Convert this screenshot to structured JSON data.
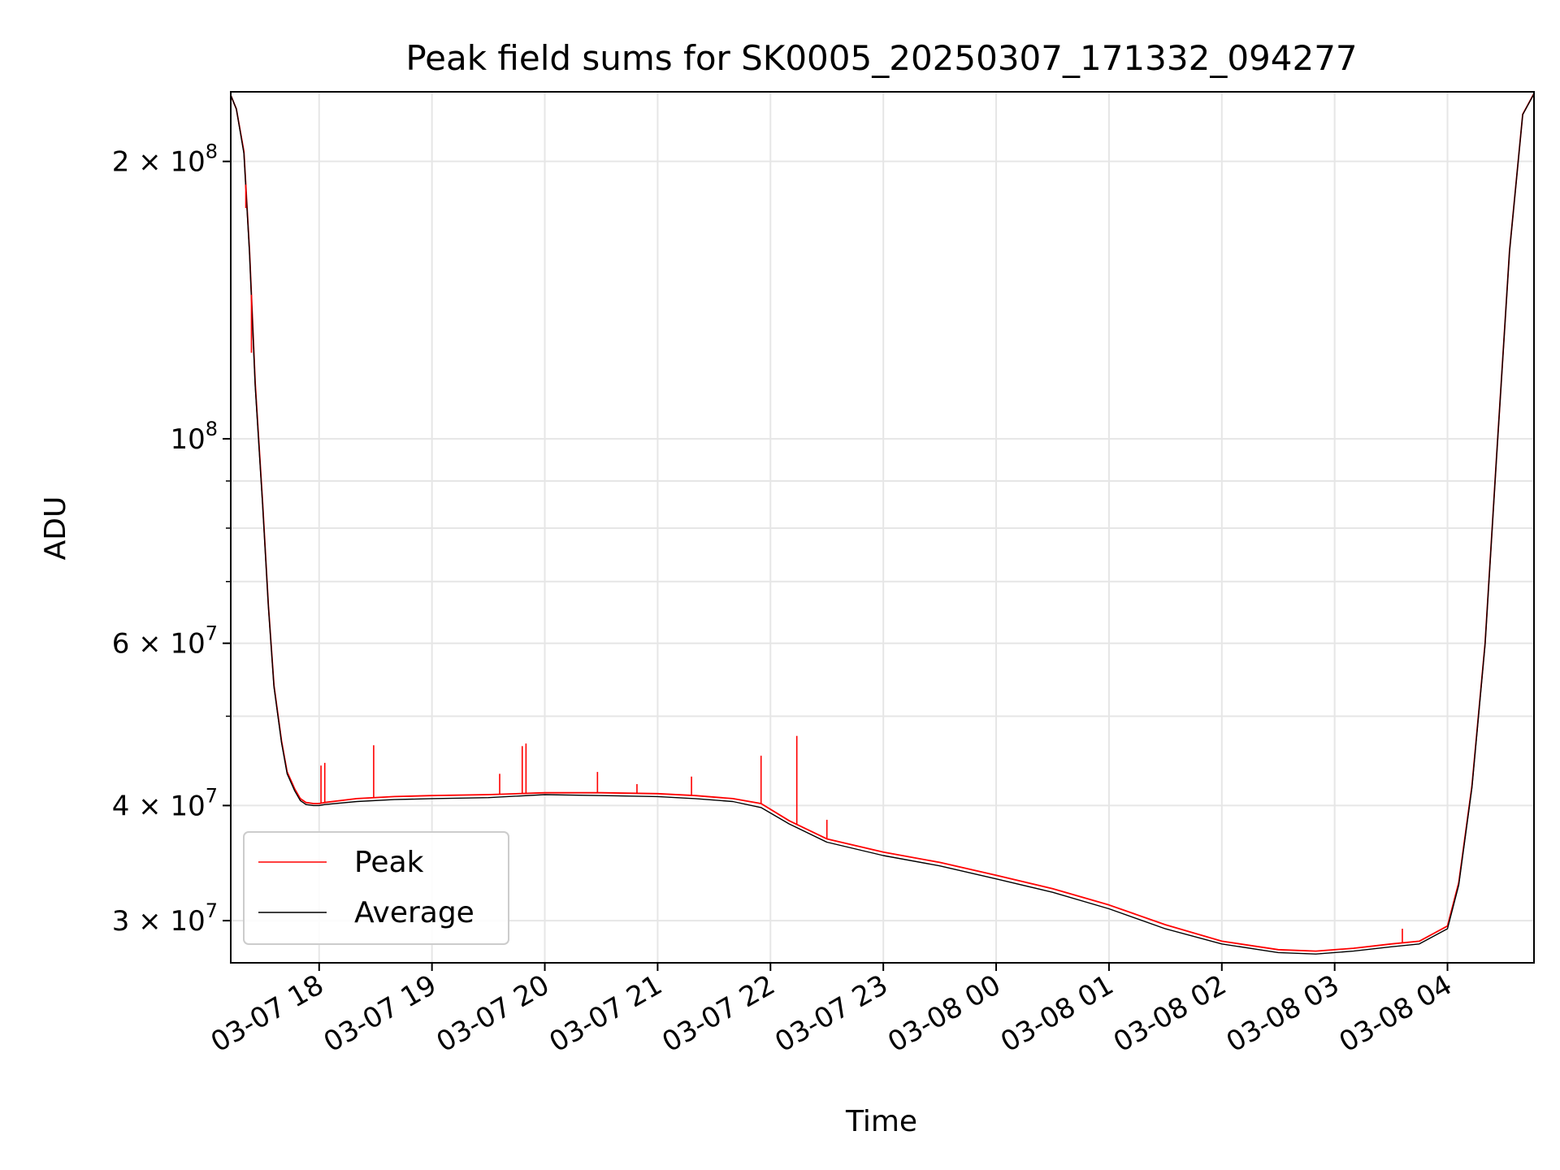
{
  "chart_data": {
    "type": "line",
    "title": "Peak field sums for SK0005_20250307_171332_094277",
    "xlabel": "Time",
    "ylabel": "ADU",
    "yscale": "log",
    "ylim": [
      27000000,
      238000000
    ],
    "xlim": [
      "2025-03-07 17:13",
      "2025-03-08 04:46"
    ],
    "grid": true,
    "legend": "lower-left",
    "x_ticks": [
      "03-07 18",
      "03-07 19",
      "03-07 20",
      "03-07 21",
      "03-07 22",
      "03-07 23",
      "03-08 00",
      "03-08 01",
      "03-08 02",
      "03-08 03",
      "03-08 04"
    ],
    "y_ticks": [
      {
        "value": 200000000,
        "base": "2 × 10",
        "exp": "8"
      },
      {
        "value": 100000000,
        "base": "10",
        "exp": "8"
      },
      {
        "value": 60000000,
        "base": "6 × 10",
        "exp": "7"
      },
      {
        "value": 40000000,
        "base": "4 × 10",
        "exp": "7"
      },
      {
        "value": 30000000,
        "base": "3 × 10",
        "exp": "7"
      }
    ],
    "series": [
      {
        "name": "Peak",
        "color": "#ff0000",
        "x": [
          "2025-03-07 17:13",
          "2025-03-07 17:16",
          "2025-03-07 17:20",
          "2025-03-07 17:23",
          "2025-03-07 17:26",
          "2025-03-07 17:30",
          "2025-03-07 17:33",
          "2025-03-07 17:36",
          "2025-03-07 17:40",
          "2025-03-07 17:43",
          "2025-03-07 17:47",
          "2025-03-07 17:50",
          "2025-03-07 17:53",
          "2025-03-07 17:57",
          "2025-03-07 18:00",
          "2025-03-07 18:03",
          "2025-03-07 18:20",
          "2025-03-07 18:40",
          "2025-03-07 19:00",
          "2025-03-07 19:30",
          "2025-03-07 20:00",
          "2025-03-07 20:30",
          "2025-03-07 21:00",
          "2025-03-07 21:20",
          "2025-03-07 21:40",
          "2025-03-07 21:55",
          "2025-03-07 22:10",
          "2025-03-07 22:30",
          "2025-03-07 23:00",
          "2025-03-07 23:30",
          "2025-03-08 00:00",
          "2025-03-08 00:30",
          "2025-03-08 01:00",
          "2025-03-08 01:30",
          "2025-03-08 02:00",
          "2025-03-08 02:30",
          "2025-03-08 02:50",
          "2025-03-08 03:10",
          "2025-03-08 03:30",
          "2025-03-08 03:45",
          "2025-03-08 04:00",
          "2025-03-08 04:06",
          "2025-03-08 04:13",
          "2025-03-08 04:20",
          "2025-03-08 04:26",
          "2025-03-08 04:33",
          "2025-03-08 04:40",
          "2025-03-08 04:46"
        ],
        "y": [
          236000000,
          228000000,
          205000000,
          160000000,
          115000000,
          85000000,
          66000000,
          54000000,
          47000000,
          43500000,
          41700000,
          40700000,
          40300000,
          40200000,
          40200000,
          40300000,
          40700000,
          40900000,
          41000000,
          41100000,
          41300000,
          41300000,
          41200000,
          41000000,
          40700000,
          40200000,
          38500000,
          36800000,
          35600000,
          34700000,
          33600000,
          32500000,
          31200000,
          29700000,
          28500000,
          27900000,
          27800000,
          28000000,
          28300000,
          28500000,
          29600000,
          33000000,
          42000000,
          60000000,
          95000000,
          160000000,
          225000000,
          237000000
        ]
      },
      {
        "name": "Average",
        "color": "#000000",
        "x": [
          "2025-03-07 17:13",
          "2025-03-07 17:16",
          "2025-03-07 17:20",
          "2025-03-07 17:23",
          "2025-03-07 17:26",
          "2025-03-07 17:30",
          "2025-03-07 17:33",
          "2025-03-07 17:36",
          "2025-03-07 17:40",
          "2025-03-07 17:43",
          "2025-03-07 17:47",
          "2025-03-07 17:50",
          "2025-03-07 17:53",
          "2025-03-07 17:57",
          "2025-03-07 18:00",
          "2025-03-07 18:03",
          "2025-03-07 18:20",
          "2025-03-07 18:40",
          "2025-03-07 19:00",
          "2025-03-07 19:30",
          "2025-03-07 20:00",
          "2025-03-07 20:30",
          "2025-03-07 21:00",
          "2025-03-07 21:20",
          "2025-03-07 21:40",
          "2025-03-07 21:55",
          "2025-03-07 22:10",
          "2025-03-07 22:30",
          "2025-03-07 23:00",
          "2025-03-07 23:30",
          "2025-03-08 00:00",
          "2025-03-08 00:30",
          "2025-03-08 01:00",
          "2025-03-08 01:30",
          "2025-03-08 02:00",
          "2025-03-08 02:30",
          "2025-03-08 02:50",
          "2025-03-08 03:10",
          "2025-03-08 03:30",
          "2025-03-08 03:45",
          "2025-03-08 04:00",
          "2025-03-08 04:06",
          "2025-03-08 04:13",
          "2025-03-08 04:20",
          "2025-03-08 04:26",
          "2025-03-08 04:33",
          "2025-03-08 04:40",
          "2025-03-08 04:46"
        ],
        "y": [
          236000000,
          228000000,
          204000000,
          159000000,
          114000000,
          84500000,
          65800000,
          53800000,
          46800000,
          43300000,
          41500000,
          40500000,
          40100000,
          40000000,
          40000000,
          40100000,
          40400000,
          40600000,
          40700000,
          40800000,
          41100000,
          41000000,
          40900000,
          40700000,
          40400000,
          39800000,
          38200000,
          36500000,
          35300000,
          34400000,
          33300000,
          32200000,
          30900000,
          29400000,
          28300000,
          27700000,
          27600000,
          27800000,
          28100000,
          28300000,
          29400000,
          32800000,
          41800000,
          59800000,
          94800000,
          159800000,
          224800000,
          236800000
        ]
      }
    ],
    "spikes": [
      {
        "series": "Peak",
        "x": "2025-03-07 17:21",
        "y": 178000000
      },
      {
        "series": "Peak",
        "x": "2025-03-07 17:24",
        "y": 124000000
      },
      {
        "series": "Peak",
        "x": "2025-03-07 18:01",
        "y": 44200000
      },
      {
        "series": "Peak",
        "x": "2025-03-07 18:03",
        "y": 44500000
      },
      {
        "series": "Peak",
        "x": "2025-03-07 18:29",
        "y": 46500000
      },
      {
        "series": "Peak",
        "x": "2025-03-07 19:36",
        "y": 43300000
      },
      {
        "series": "Peak",
        "x": "2025-03-07 19:48",
        "y": 46400000
      },
      {
        "series": "Peak",
        "x": "2025-03-07 19:50",
        "y": 46700000
      },
      {
        "series": "Peak",
        "x": "2025-03-07 20:28",
        "y": 43500000
      },
      {
        "series": "Peak",
        "x": "2025-03-07 20:49",
        "y": 42200000
      },
      {
        "series": "Peak",
        "x": "2025-03-07 21:18",
        "y": 43000000
      },
      {
        "series": "Peak",
        "x": "2025-03-07 21:55",
        "y": 45300000
      },
      {
        "series": "Peak",
        "x": "2025-03-07 22:14",
        "y": 47600000
      },
      {
        "series": "Peak",
        "x": "2025-03-07 22:30",
        "y": 38600000
      },
      {
        "series": "Peak",
        "x": "2025-03-08 03:36",
        "y": 29400000
      }
    ]
  }
}
